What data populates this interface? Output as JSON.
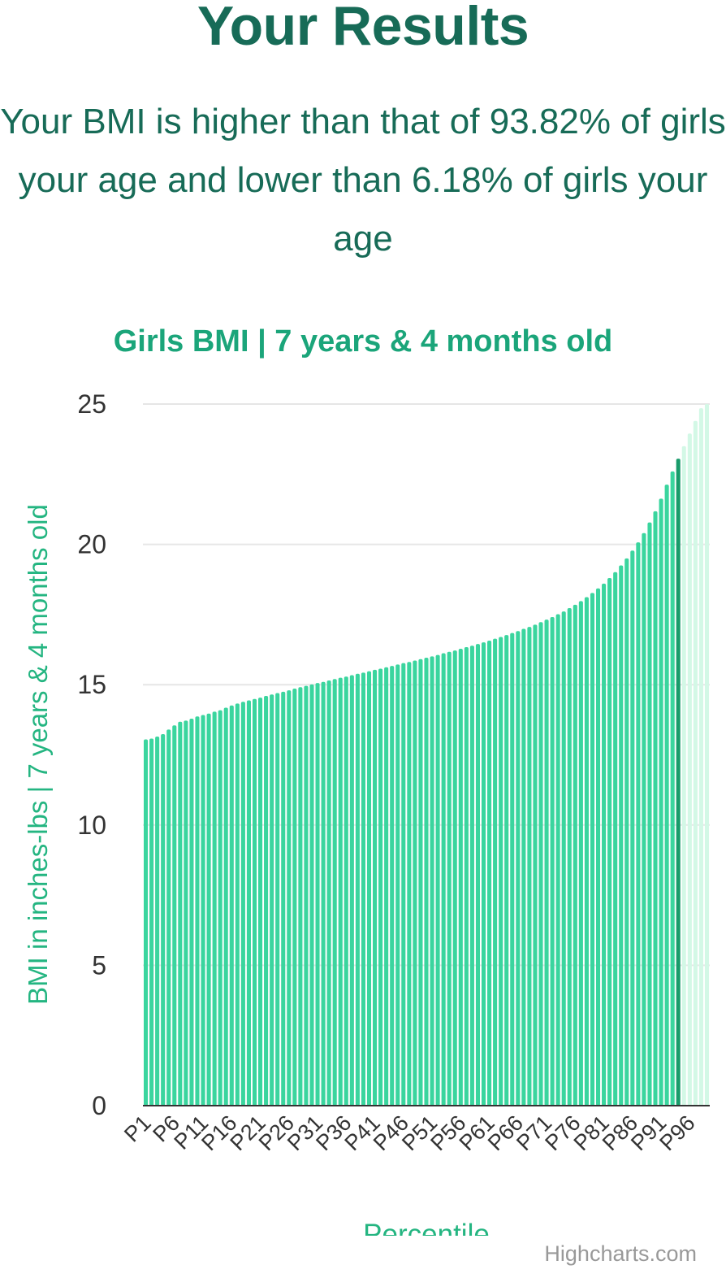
{
  "page": {
    "title": "Your Results",
    "result_text": "Your BMI is higher than that of 93.82% of girls your age and lower than 6.18% of girls your age"
  },
  "colors": {
    "title": "#176b57",
    "bar": "#3ad59e",
    "highlight": "#189b6a",
    "above": "#d3f8e6",
    "chart_title": "#1ba57a",
    "axis_label": "#24b581",
    "grid": "#e6e6e6",
    "tick": "#333333"
  },
  "chart_data": {
    "type": "bar",
    "title": "Girls BMI | 7 years & 4 months old",
    "xlabel": "Percentile",
    "ylabel": "BMI in inches-lbs | 7 years & 4 months old",
    "ylim": [
      0,
      25
    ],
    "yticks": [
      0,
      5,
      10,
      15,
      20,
      25
    ],
    "grid": true,
    "highlight_category": "P94",
    "categories": [
      "P1",
      "P2",
      "P3",
      "P4",
      "P5",
      "P6",
      "P7",
      "P8",
      "P9",
      "P10",
      "P11",
      "P12",
      "P13",
      "P14",
      "P15",
      "P16",
      "P17",
      "P18",
      "P19",
      "P20",
      "P21",
      "P22",
      "P23",
      "P24",
      "P25",
      "P26",
      "P27",
      "P28",
      "P29",
      "P30",
      "P31",
      "P32",
      "P33",
      "P34",
      "P35",
      "P36",
      "P37",
      "P38",
      "P39",
      "P40",
      "P41",
      "P42",
      "P43",
      "P44",
      "P45",
      "P46",
      "P47",
      "P48",
      "P49",
      "P50",
      "P51",
      "P52",
      "P53",
      "P54",
      "P55",
      "P56",
      "P57",
      "P58",
      "P59",
      "P60",
      "P61",
      "P62",
      "P63",
      "P64",
      "P65",
      "P66",
      "P67",
      "P68",
      "P69",
      "P70",
      "P71",
      "P72",
      "P73",
      "P74",
      "P75",
      "P76",
      "P77",
      "P78",
      "P79",
      "P80",
      "P81",
      "P82",
      "P83",
      "P84",
      "P85",
      "P86",
      "P87",
      "P88",
      "P89",
      "P90",
      "P91",
      "P92",
      "P93",
      "P94",
      "P95",
      "P96",
      "P97",
      "P98",
      "P99"
    ],
    "tick_labels": [
      "P1",
      "P6",
      "P11",
      "P16",
      "P21",
      "P26",
      "P31",
      "P36",
      "P41",
      "P46",
      "P51",
      "P56",
      "P61",
      "P66",
      "P71",
      "P76",
      "P81",
      "P86",
      "P91",
      "P96"
    ],
    "values": [
      13.05,
      13.08,
      13.15,
      13.24,
      13.4,
      13.55,
      13.68,
      13.72,
      13.79,
      13.87,
      13.92,
      13.97,
      14.04,
      14.09,
      14.18,
      14.26,
      14.33,
      14.39,
      14.44,
      14.49,
      14.54,
      14.6,
      14.65,
      14.7,
      14.75,
      14.8,
      14.86,
      14.91,
      14.96,
      15.01,
      15.06,
      15.1,
      15.15,
      15.2,
      15.25,
      15.29,
      15.34,
      15.39,
      15.43,
      15.48,
      15.53,
      15.57,
      15.62,
      15.67,
      15.72,
      15.77,
      15.81,
      15.86,
      15.91,
      15.96,
      16.01,
      16.06,
      16.12,
      16.17,
      16.22,
      16.28,
      16.34,
      16.39,
      16.45,
      16.51,
      16.57,
      16.64,
      16.7,
      16.77,
      16.84,
      16.91,
      16.99,
      17.06,
      17.14,
      17.23,
      17.32,
      17.41,
      17.51,
      17.61,
      17.73,
      17.85,
      17.98,
      18.12,
      18.27,
      18.43,
      18.6,
      18.8,
      19.01,
      19.25,
      19.5,
      19.78,
      20.07,
      20.4,
      20.78,
      21.18,
      21.63,
      22.13,
      22.6,
      23.05,
      23.5,
      23.95,
      24.4,
      24.85,
      25.3
    ]
  }
}
